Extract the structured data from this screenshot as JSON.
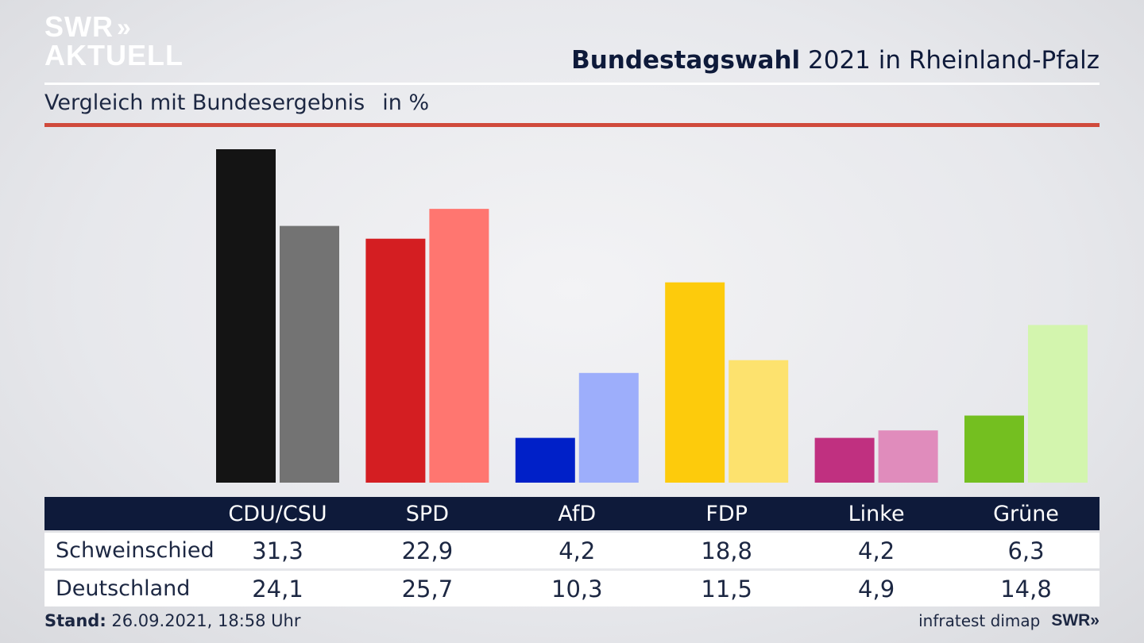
{
  "logo": {
    "line1": "SWR",
    "arrows": "»",
    "line2": "AKTUELL"
  },
  "title": {
    "bold": "Bundestagswahl",
    "rest": " 2021 in Rheinland-Pfalz"
  },
  "subtitle": {
    "text": "Vergleich mit Bundesergebnis",
    "unit": "in %"
  },
  "footer": {
    "stand_label": "Stand:",
    "stand_value": " 26.09.2021, 18:58 Uhr"
  },
  "source": {
    "text": "infratest dimap",
    "brand": "SWR»"
  },
  "chart_data": {
    "type": "bar",
    "categories": [
      "CDU/CSU",
      "SPD",
      "AfD",
      "FDP",
      "Linke",
      "Grüne"
    ],
    "series": [
      {
        "name": "Schweinschied",
        "values": [
          31.3,
          22.9,
          4.2,
          18.8,
          4.2,
          6.3
        ],
        "colors": [
          "#141414",
          "#d41e22",
          "#0020c8",
          "#fdcb0c",
          "#c03080",
          "#74bf20"
        ]
      },
      {
        "name": "Deutschland",
        "values": [
          24.1,
          25.7,
          10.3,
          11.5,
          4.9,
          14.8
        ],
        "colors": [
          "#737373",
          "#ff7670",
          "#9daefb",
          "#fde26e",
          "#e08cbc",
          "#d3f5ae"
        ]
      }
    ],
    "ylim": [
      0,
      31.3
    ],
    "grid": false
  }
}
